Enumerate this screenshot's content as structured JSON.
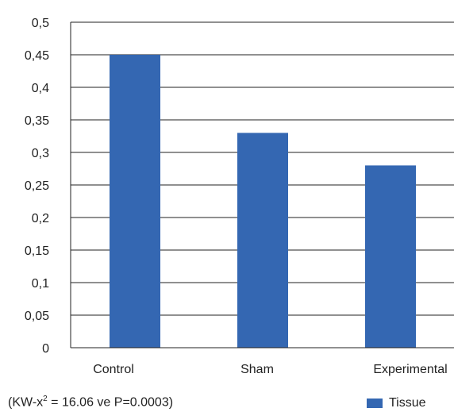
{
  "chart_data": {
    "type": "bar",
    "categories": [
      "Control",
      "Sham",
      "Experimental"
    ],
    "series": [
      {
        "name": "Tissue",
        "values": [
          0.45,
          0.33,
          0.28
        ],
        "color": "#3467b2"
      }
    ],
    "ylim": [
      0,
      0.5
    ],
    "yticks": [
      "0",
      "0,05",
      "0,1",
      "0,15",
      "0,2",
      "0,25",
      "0,3",
      "0,35",
      "0,4",
      "0,45",
      "0,5"
    ],
    "grid": true,
    "legend_placement": "bottom-right"
  },
  "footnote": {
    "before": "(KW-x",
    "superscript": "2",
    "after": " = 16.06 ve P=0.0003)"
  },
  "legend": {
    "label": "Tissue"
  }
}
